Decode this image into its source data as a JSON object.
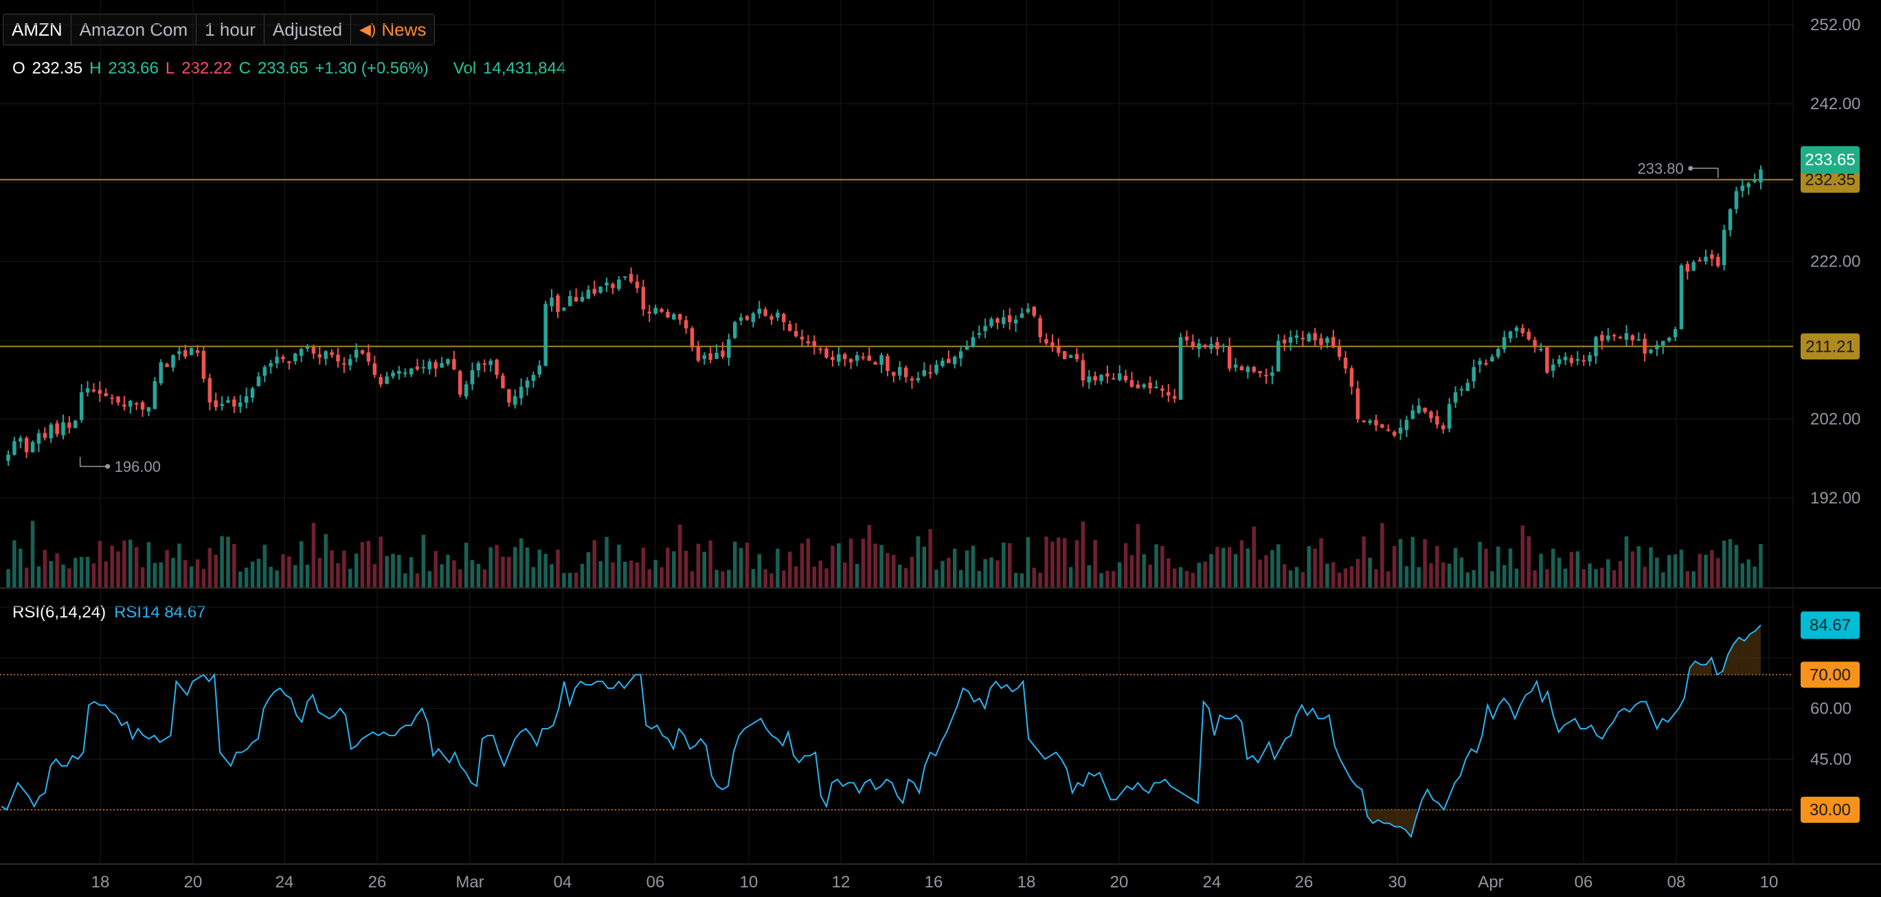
{
  "toolbar": {
    "symbol": "AMZN",
    "company": "Amazon Com",
    "interval": "1 hour",
    "adjustment": "Adjusted",
    "news_label": "News",
    "news_icon": "speaker-icon"
  },
  "ohlc": {
    "o_label": "O",
    "o_value": "232.35",
    "h_label": "H",
    "h_value": "233.66",
    "l_label": "L",
    "l_value": "232.22",
    "c_label": "C",
    "c_value": "233.65",
    "change": "+1.30 (+0.56%)",
    "vol_label": "Vol",
    "vol_value": "14,431,844"
  },
  "rsi_legend": {
    "name": "RSI(6,14,24)",
    "series": "RSI14 84.67"
  },
  "colors": {
    "up": "#26a69a",
    "down": "#ef5350",
    "rsi": "#29b6f6",
    "level_line": "#c9a227",
    "level_label": "#b08a1e",
    "current_price_label": "#1fae85",
    "rsi_badge": "#00bcd4",
    "rsi_bound_badge": "#f7931a"
  },
  "chart_data": [
    {
      "type": "candlestick",
      "symbol": "AMZN",
      "interval": "1 hour",
      "x_tick_labels": [
        "18",
        "20",
        "24",
        "26",
        "Mar",
        "04",
        "06",
        "10",
        "12",
        "16",
        "18",
        "20",
        "24",
        "26",
        "30",
        "Apr",
        "06",
        "08",
        "10"
      ],
      "y_ticks": [
        192.0,
        202.0,
        212.0,
        222.0,
        232.0,
        242.0,
        252.0
      ],
      "y_tick_labels": [
        "192.00",
        "202.00",
        "222.00",
        "242.00",
        "252.00"
      ],
      "ylim": [
        187.0,
        255.0
      ],
      "last_price": 233.65,
      "last_price_label": "233.65",
      "horizontal_levels": [
        {
          "value": 232.35,
          "label": "232.35"
        },
        {
          "value": 211.21,
          "label": "211.21"
        }
      ],
      "annotations": [
        {
          "label": "233.80",
          "value": 233.8,
          "kind": "high"
        },
        {
          "label": "196.00",
          "value": 196.0,
          "kind": "low"
        }
      ],
      "close": [
        197.5,
        199.2,
        199.6,
        197.8,
        199.1,
        200.2,
        199.6,
        201.3,
        200.1,
        201.6,
        200.9,
        201.8,
        205.4,
        205.9,
        205.5,
        205.2,
        204.9,
        204.6,
        204.1,
        203.6,
        204.3,
        203.9,
        203.2,
        203.5,
        206.8,
        209.2,
        208.6,
        210.1,
        210.6,
        209.9,
        211.0,
        210.4,
        207.1,
        204.1,
        203.5,
        203.9,
        204.4,
        203.6,
        204.1,
        204.9,
        205.9,
        207.4,
        208.6,
        209.1,
        209.9,
        209.6,
        209.1,
        210.3,
        210.9,
        211.2,
        210.3,
        209.8,
        210.6,
        210.1,
        209.3,
        208.9,
        209.6,
        210.8,
        210.3,
        209.3,
        207.6,
        206.4,
        207.4,
        207.9,
        208.1,
        207.9,
        208.4,
        208.3,
        208.6,
        209.3,
        208.4,
        209.1,
        209.6,
        208.3,
        205.1,
        206.4,
        208.2,
        209.1,
        208.9,
        209.4,
        207.6,
        205.9,
        204.1,
        204.9,
        206.1,
        206.9,
        207.6,
        208.8,
        216.6,
        217.4,
        215.6,
        216.1,
        217.6,
        216.9,
        217.5,
        218.4,
        217.9,
        218.8,
        219.3,
        218.6,
        219.7,
        220.1,
        219.4,
        218.6,
        215.9,
        215.4,
        216.1,
        215.6,
        214.9,
        215.3,
        214.6,
        213.5,
        211.1,
        209.4,
        210.1,
        209.5,
        210.4,
        209.9,
        212.1,
        214.3,
        214.9,
        214.6,
        215.4,
        216.0,
        215.1,
        214.6,
        215.5,
        214.3,
        213.2,
        212.5,
        212.1,
        211.6,
        211.2,
        210.9,
        209.8,
        209.5,
        210.2,
        209.6,
        209.2,
        210.1,
        209.9,
        209.4,
        208.9,
        210.1,
        208.1,
        207.5,
        208.6,
        207.3,
        206.9,
        207.2,
        208.2,
        207.9,
        208.9,
        209.4,
        209.1,
        209.9,
        210.6,
        211.3,
        212.4,
        212.9,
        213.8,
        214.7,
        214.2,
        214.9,
        214.3,
        214.6,
        215.4,
        216.0,
        215.1,
        212.4,
        211.6,
        211.1,
        210.4,
        209.6,
        210.1,
        209.6,
        206.9,
        207.4,
        206.9,
        207.6,
        207.4,
        207.1,
        207.8,
        206.9,
        206.1,
        205.9,
        206.4,
        205.9,
        206.1,
        205.6,
        205.0,
        204.6,
        212.4,
        212.0,
        211.1,
        211.6,
        211.1,
        211.5,
        210.9,
        211.3,
        208.4,
        208.9,
        208.2,
        208.6,
        208.0,
        207.8,
        207.5,
        207.9,
        211.9,
        211.6,
        212.4,
        212.6,
        212.1,
        212.8,
        212.0,
        211.4,
        212.3,
        211.1,
        209.9,
        208.4,
        206.1,
        202.0,
        201.6,
        201.8,
        201.2,
        200.9,
        200.6,
        199.9,
        200.9,
        201.9,
        203.1,
        203.7,
        202.9,
        202.1,
        201.3,
        200.7,
        203.9,
        205.4,
        205.8,
        206.6,
        208.6,
        209.4,
        209.1,
        209.9,
        210.9,
        212.4,
        213.1,
        213.6,
        212.9,
        212.1,
        211.1,
        210.9,
        207.9,
        208.9,
        209.6,
        209.9,
        209.1,
        209.6,
        209.3,
        210.1,
        212.4,
        211.9,
        212.6,
        212.5,
        212.3,
        212.9,
        212.0,
        212.1,
        210.3,
        210.8,
        211.4,
        211.9,
        212.3,
        213.4,
        221.5,
        220.7,
        221.9,
        222.0,
        222.6,
        222.3,
        221.4,
        226.0,
        228.6,
        230.9,
        231.6,
        231.9,
        232.3,
        233.65
      ]
    },
    {
      "type": "bar",
      "name": "Volume",
      "series": [
        {
          "values": "one bar per candle, relative heights 0.2-1.0 (coloured by candle direction)"
        }
      ]
    },
    {
      "type": "line",
      "name": "RSI(6,14,24)",
      "y_ticks": [
        30.0,
        45.0,
        60.0,
        75.0,
        90.0
      ],
      "y_tick_labels": [
        "45.00",
        "60.00"
      ],
      "ylim": [
        15.0,
        94.0
      ],
      "bounds": [
        {
          "value": 70.0,
          "label": "70.00"
        },
        {
          "value": 30.0,
          "label": "30.00"
        }
      ],
      "last_value": 84.67,
      "last_value_label": "84.67",
      "series": [
        {
          "name": "RSI14",
          "values": [
            31,
            30,
            34,
            38,
            36,
            34,
            31,
            34,
            35,
            43,
            45,
            43,
            43,
            46,
            45,
            47,
            61,
            62,
            61,
            61,
            59,
            58,
            55,
            56,
            51,
            54,
            52,
            51,
            52,
            50,
            51,
            52,
            68,
            66,
            64,
            68,
            69,
            70,
            68,
            70,
            47,
            45,
            43,
            47,
            47,
            48,
            50,
            51,
            60,
            63,
            65,
            66,
            64,
            63,
            58,
            56,
            62,
            64,
            59,
            58,
            57,
            58,
            60,
            58,
            48,
            49,
            51,
            52,
            53,
            52,
            53,
            52,
            52,
            54,
            55,
            55,
            58,
            60,
            56,
            46,
            48,
            46,
            44,
            47,
            43,
            41,
            38,
            37,
            51,
            52,
            52,
            47,
            43,
            47,
            51,
            53,
            54,
            52,
            49,
            54,
            54,
            55,
            60,
            68,
            61,
            66,
            68,
            67,
            67,
            68,
            68,
            66,
            66,
            68,
            66,
            68,
            70,
            70,
            55,
            54,
            55,
            52,
            51,
            48,
            54,
            52,
            48,
            49,
            51,
            49,
            40,
            37,
            36,
            37,
            47,
            52,
            54,
            55,
            56,
            57,
            54,
            52,
            51,
            49,
            53,
            46,
            44,
            46,
            46,
            47,
            34,
            31,
            38,
            39,
            37,
            38,
            38,
            35,
            38,
            39,
            36,
            37,
            39,
            38,
            34,
            32,
            39,
            38,
            35,
            43,
            47,
            46,
            50,
            53,
            57,
            61,
            66,
            65,
            62,
            63,
            60,
            66,
            68,
            66,
            67,
            65,
            66,
            68,
            51,
            49,
            47,
            45,
            46,
            47,
            45,
            42,
            35,
            38,
            37,
            41,
            40,
            41,
            37,
            33,
            33,
            35,
            37,
            36,
            38,
            36,
            35,
            38,
            38,
            39,
            37,
            36,
            35,
            34,
            33,
            32,
            62,
            60,
            52,
            58,
            57,
            57,
            58,
            56,
            45,
            46,
            44,
            47,
            50,
            45,
            48,
            51,
            52,
            58,
            61,
            58,
            60,
            57,
            57,
            58,
            49,
            45,
            42,
            39,
            37,
            36,
            28,
            26,
            27,
            26,
            26,
            25,
            25,
            24,
            22,
            28,
            33,
            36,
            33,
            32,
            30,
            34,
            38,
            40,
            45,
            48,
            47,
            52,
            61,
            57,
            61,
            63,
            61,
            57,
            61,
            64,
            65,
            68,
            62,
            65,
            58,
            53,
            55,
            56,
            57,
            54,
            54,
            55,
            52,
            51,
            54,
            56,
            59,
            60,
            59,
            61,
            62,
            62,
            58,
            54,
            57,
            56,
            58,
            60,
            63,
            72,
            74,
            73,
            73,
            75,
            70,
            71,
            76,
            79,
            81,
            80,
            82,
            83,
            84.67
          ]
        }
      ]
    }
  ]
}
